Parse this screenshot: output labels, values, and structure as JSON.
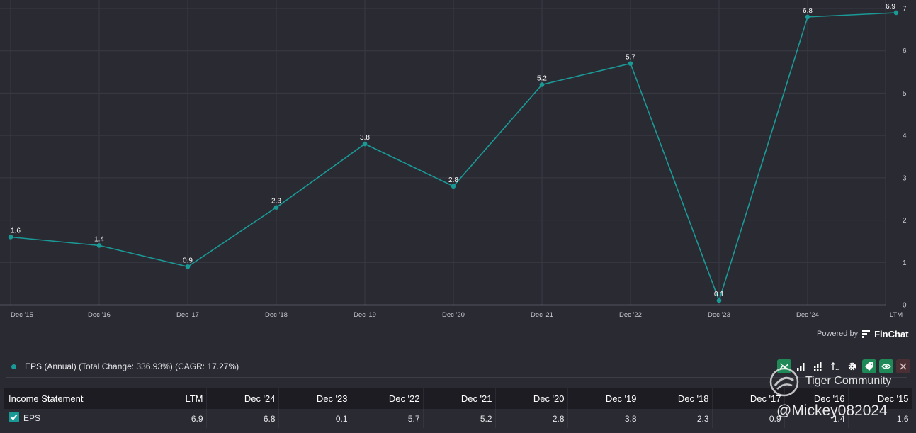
{
  "chart_data": {
    "type": "line",
    "x": [
      "Dec '15",
      "Dec '16",
      "Dec '17",
      "Dec '18",
      "Dec '19",
      "Dec '20",
      "Dec '21",
      "Dec '22",
      "Dec '23",
      "Dec '24",
      "LTM"
    ],
    "values": [
      1.6,
      1.4,
      0.9,
      2.3,
      3.8,
      2.8,
      5.2,
      5.7,
      0.1,
      6.8,
      6.9
    ],
    "value_labels": [
      "1.6",
      "1.4",
      "0.9",
      "2.3",
      "3.8",
      "2.8",
      "5.2",
      "5.7",
      "0.1",
      "6.8",
      "6.9"
    ],
    "yticks": [
      0,
      1,
      2,
      3,
      4,
      5,
      6,
      7
    ],
    "ylim": [
      0,
      7
    ],
    "grid": true,
    "series_color": "#1a9a96"
  },
  "branding": {
    "powered_by": "Powered by",
    "brand": "FinChat"
  },
  "legend": {
    "label": "EPS (Annual) (Total Change: 336.93%) (CAGR: 17.27%)"
  },
  "toolbar": {
    "icons": [
      "line-chart-icon",
      "bar-chart-icon",
      "stacked-bar-icon",
      "sort-icon",
      "gear-icon",
      "tag-icon",
      "eye-icon",
      "close-icon"
    ]
  },
  "table": {
    "headers": [
      "Income Statement",
      "LTM",
      "Dec '24",
      "Dec '23",
      "Dec '22",
      "Dec '21",
      "Dec '20",
      "Dec '19",
      "Dec '18",
      "Dec '17",
      "Dec '16",
      "Dec '15"
    ],
    "rows": [
      {
        "label": "EPS",
        "cells": [
          "6.9",
          "6.8",
          "0.1",
          "5.7",
          "5.2",
          "2.8",
          "3.8",
          "2.3",
          "0.9",
          "1.4",
          "1.6"
        ]
      }
    ]
  },
  "watermark": {
    "community": "Tiger Community",
    "user": "@Mickey082024"
  }
}
